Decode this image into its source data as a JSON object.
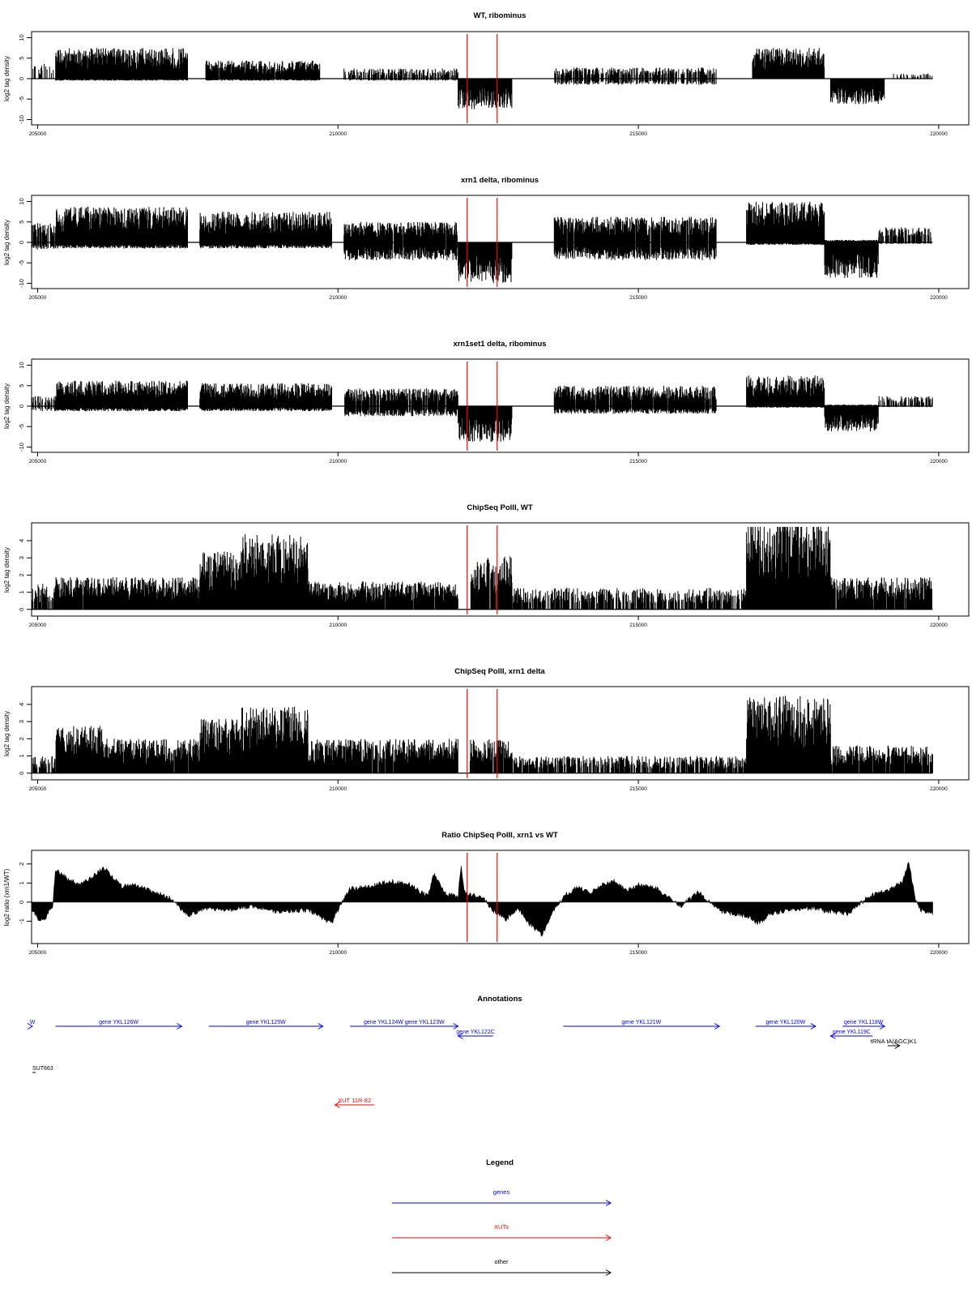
{
  "colors": {
    "signal": "#000000",
    "marker": "#ff0000",
    "gene": "#0000ff",
    "xut": "#ff0000",
    "other": "#000000"
  },
  "x_axis": {
    "ticks": [
      205000,
      210000,
      215000,
      220000
    ],
    "range": [
      204900,
      220500
    ]
  },
  "markers": {
    "positions": [
      212150,
      212650
    ]
  },
  "chart_data": [
    {
      "type": "bar",
      "title": "WT, ribominus",
      "ylabel": "log2 tag density",
      "ylim": [
        -10.5,
        10.5
      ],
      "yticks": [
        -10,
        -5,
        0,
        5,
        10
      ],
      "grid": false,
      "regions": [
        {
          "start": 204900,
          "end": 205300,
          "pos": 3,
          "neg": 0,
          "density": 0.35
        },
        {
          "start": 205300,
          "end": 207500,
          "pos": 6,
          "neg": 0.4,
          "density": 1
        },
        {
          "start": 207800,
          "end": 209700,
          "pos": 3.5,
          "neg": 0.4,
          "density": 0.9
        },
        {
          "start": 210100,
          "end": 212000,
          "pos": 2,
          "neg": 0.4,
          "density": 0.45
        },
        {
          "start": 212000,
          "end": 212900,
          "pos": 0,
          "neg": 6,
          "density": 1
        },
        {
          "start": 213600,
          "end": 216300,
          "pos": 2.2,
          "neg": 1.2,
          "density": 0.5
        },
        {
          "start": 216900,
          "end": 218100,
          "pos": 6,
          "neg": 0,
          "density": 1
        },
        {
          "start": 218200,
          "end": 219100,
          "pos": 0,
          "neg": 5,
          "density": 1
        },
        {
          "start": 219200,
          "end": 219900,
          "pos": 1,
          "neg": 0,
          "density": 0.25
        }
      ]
    },
    {
      "type": "bar",
      "title": "xrn1 delta, ribominus",
      "ylabel": "log2 tag density",
      "ylim": [
        -10.5,
        10.5
      ],
      "yticks": [
        -10,
        -5,
        0,
        5,
        10
      ],
      "grid": false,
      "regions": [
        {
          "start": 204900,
          "end": 205300,
          "pos": 4,
          "neg": 1.5,
          "density": 0.6
        },
        {
          "start": 205300,
          "end": 207500,
          "pos": 7,
          "neg": 1.2,
          "density": 1
        },
        {
          "start": 207700,
          "end": 209900,
          "pos": 6,
          "neg": 1.2,
          "density": 1
        },
        {
          "start": 210100,
          "end": 212000,
          "pos": 4,
          "neg": 3.5,
          "density": 0.9
        },
        {
          "start": 212000,
          "end": 212900,
          "pos": 0,
          "neg": 8,
          "density": 1
        },
        {
          "start": 213600,
          "end": 216300,
          "pos": 5,
          "neg": 3.5,
          "density": 0.9
        },
        {
          "start": 216800,
          "end": 218100,
          "pos": 8,
          "neg": 0.5,
          "density": 1
        },
        {
          "start": 218100,
          "end": 219000,
          "pos": 0.5,
          "neg": 7,
          "density": 1
        },
        {
          "start": 219000,
          "end": 219900,
          "pos": 3,
          "neg": 0.3,
          "density": 0.6
        }
      ]
    },
    {
      "type": "bar",
      "title": "xrn1set1 delta, ribominus",
      "ylabel": "log2 tag density",
      "ylim": [
        -10.5,
        10.5
      ],
      "yticks": [
        -10,
        -5,
        0,
        5,
        10
      ],
      "grid": false,
      "regions": [
        {
          "start": 204900,
          "end": 205300,
          "pos": 2,
          "neg": 1,
          "density": 0.4
        },
        {
          "start": 205300,
          "end": 207500,
          "pos": 5,
          "neg": 1,
          "density": 1
        },
        {
          "start": 207700,
          "end": 209900,
          "pos": 4.5,
          "neg": 1,
          "density": 1
        },
        {
          "start": 210100,
          "end": 212000,
          "pos": 3.5,
          "neg": 2,
          "density": 0.8
        },
        {
          "start": 212000,
          "end": 212900,
          "pos": 0,
          "neg": 7,
          "density": 1
        },
        {
          "start": 213600,
          "end": 216300,
          "pos": 4,
          "neg": 1.5,
          "density": 0.8
        },
        {
          "start": 216800,
          "end": 218100,
          "pos": 6,
          "neg": 0.3,
          "density": 1
        },
        {
          "start": 218100,
          "end": 219000,
          "pos": 0.3,
          "neg": 5,
          "density": 1
        },
        {
          "start": 219000,
          "end": 219900,
          "pos": 2,
          "neg": 0.2,
          "density": 0.4
        }
      ]
    },
    {
      "type": "bar",
      "title": "ChipSeq PolII, WT",
      "ylabel": "log2 tag density",
      "ylim": [
        -0.2,
        4.8
      ],
      "yticks": [
        0,
        1,
        2,
        3,
        4
      ],
      "grid": false,
      "regions": [
        {
          "start": 204900,
          "end": 205300,
          "pos": 1.2,
          "neg": 0,
          "density": 0.5
        },
        {
          "start": 205300,
          "end": 207700,
          "pos": 1.5,
          "neg": 0,
          "density": 0.95
        },
        {
          "start": 207700,
          "end": 208400,
          "pos": 2.8,
          "neg": 0,
          "density": 1
        },
        {
          "start": 208400,
          "end": 209500,
          "pos": 3.5,
          "neg": 0,
          "density": 1
        },
        {
          "start": 209500,
          "end": 212000,
          "pos": 1.3,
          "neg": 0,
          "density": 0.9
        },
        {
          "start": 212200,
          "end": 212900,
          "pos": 2.5,
          "neg": 0,
          "density": 0.8
        },
        {
          "start": 212900,
          "end": 216800,
          "pos": 1,
          "neg": 0,
          "density": 0.6
        },
        {
          "start": 216800,
          "end": 218200,
          "pos": 4.3,
          "neg": 0,
          "density": 1
        },
        {
          "start": 218200,
          "end": 219900,
          "pos": 1.5,
          "neg": 0,
          "density": 0.8
        }
      ]
    },
    {
      "type": "bar",
      "title": "ChipSeq PolII, xrn1 delta",
      "ylabel": "log2 tag density",
      "ylim": [
        -0.2,
        4.8
      ],
      "yticks": [
        0,
        1,
        2,
        3,
        4
      ],
      "grid": false,
      "regions": [
        {
          "start": 204900,
          "end": 205300,
          "pos": 0.8,
          "neg": 0,
          "density": 0.5
        },
        {
          "start": 205300,
          "end": 206100,
          "pos": 2.2,
          "neg": 0,
          "density": 1
        },
        {
          "start": 206100,
          "end": 207700,
          "pos": 1.6,
          "neg": 0,
          "density": 0.95
        },
        {
          "start": 207700,
          "end": 208400,
          "pos": 2.6,
          "neg": 0,
          "density": 1
        },
        {
          "start": 208400,
          "end": 209500,
          "pos": 3.1,
          "neg": 0,
          "density": 1
        },
        {
          "start": 209500,
          "end": 212000,
          "pos": 1.6,
          "neg": 0,
          "density": 0.9
        },
        {
          "start": 212200,
          "end": 212900,
          "pos": 1.6,
          "neg": 0,
          "density": 0.8
        },
        {
          "start": 212900,
          "end": 216800,
          "pos": 0.8,
          "neg": 0,
          "density": 0.6
        },
        {
          "start": 216800,
          "end": 218200,
          "pos": 3.6,
          "neg": 0,
          "density": 1
        },
        {
          "start": 218200,
          "end": 219900,
          "pos": 1.3,
          "neg": 0,
          "density": 0.8
        }
      ]
    },
    {
      "type": "area",
      "title": "Ratio ChipSeq PolII, xrn1 vs WT",
      "ylabel": "log2 ratio (xrn1/WT)",
      "ylim": [
        -2,
        2.5
      ],
      "yticks": [
        -1,
        0,
        1,
        2
      ],
      "grid": false,
      "x": [
        204900,
        205000,
        205100,
        205250,
        205300,
        205500,
        205700,
        205900,
        206100,
        206250,
        206400,
        206600,
        206900,
        207200,
        207500,
        207800,
        208200,
        208600,
        209000,
        209500,
        209900,
        210000,
        210200,
        210500,
        210900,
        211200,
        211500,
        211600,
        211800,
        212000,
        212050,
        212100,
        212200,
        212400,
        212600,
        212800,
        213000,
        213200,
        213400,
        213600,
        213800,
        214000,
        214200,
        214400,
        214600,
        214800,
        215000,
        215300,
        215700,
        216000,
        216400,
        216800,
        217000,
        217200,
        217500,
        217900,
        218200,
        218500,
        218800,
        219000,
        219200,
        219400,
        219500,
        219600,
        219700,
        219900
      ],
      "y": [
        -0.3,
        -0.8,
        -1.0,
        -0.2,
        1.7,
        1.2,
        0.9,
        1.3,
        1.8,
        1.3,
        0.8,
        0.9,
        0.6,
        0.2,
        -0.7,
        -0.3,
        -0.4,
        -0.2,
        -0.5,
        -0.4,
        -1.1,
        -0.4,
        0.7,
        0.8,
        1.1,
        0.9,
        0.3,
        1.5,
        0.4,
        0.3,
        2.0,
        0.5,
        0.4,
        0.3,
        -0.5,
        -0.9,
        -0.3,
        -1.2,
        -1.7,
        -0.4,
        0.4,
        0.8,
        0.5,
        0.9,
        1.1,
        0.6,
        0.9,
        0.7,
        -0.2,
        0.5,
        -0.5,
        -0.7,
        -1.1,
        -0.6,
        -0.4,
        -0.3,
        -0.5,
        -0.6,
        0.2,
        0.5,
        0.7,
        1.1,
        2.1,
        0.3,
        -0.4,
        -0.6
      ]
    }
  ],
  "annotations": {
    "title": "Annotations",
    "genes": [
      {
        "label": "W",
        "start": 204150,
        "end": 204780,
        "row": 0,
        "direction": "right"
      },
      {
        "label": "gene YKL126W",
        "start": 205300,
        "end": 207400,
        "row": 0,
        "direction": "right"
      },
      {
        "label": "gene YKL125W",
        "start": 207850,
        "end": 209750,
        "row": 0,
        "direction": "right"
      },
      {
        "label": "gene YKL124W gene YKL123W",
        "start": 210200,
        "end": 212000,
        "row": 0,
        "direction": "right"
      },
      {
        "label": "gene YKL122C",
        "start": 212000,
        "end": 212580,
        "row": 1,
        "direction": "left"
      },
      {
        "label": "gene YKL121W",
        "start": 213750,
        "end": 216350,
        "row": 0,
        "direction": "right"
      },
      {
        "label": "gene YKL120W",
        "start": 216950,
        "end": 217950,
        "row": 0,
        "direction": "right"
      },
      {
        "label": "gene YKL118W",
        "start": 218400,
        "end": 219100,
        "row": 0,
        "direction": "right"
      },
      {
        "label": "gene YKL119C",
        "start": 218200,
        "end": 218900,
        "row": 1,
        "direction": "left"
      }
    ],
    "other": [
      {
        "label": "tRNA tA(AGC)K1",
        "start": 219150,
        "end": 219350,
        "direction": "right"
      },
      {
        "label": "SUT663",
        "start": 204150,
        "end": 204970,
        "direction": "none"
      }
    ],
    "xuts": [
      {
        "label": "XUT 11R-82",
        "start": 209950,
        "end": 210600,
        "direction": "left"
      }
    ]
  },
  "legend": {
    "title": "Legend",
    "items": [
      {
        "label": "genes",
        "color": "#0000ff"
      },
      {
        "label": "XUTs",
        "color": "#ff0000"
      },
      {
        "label": "other",
        "color": "#000000"
      }
    ]
  }
}
